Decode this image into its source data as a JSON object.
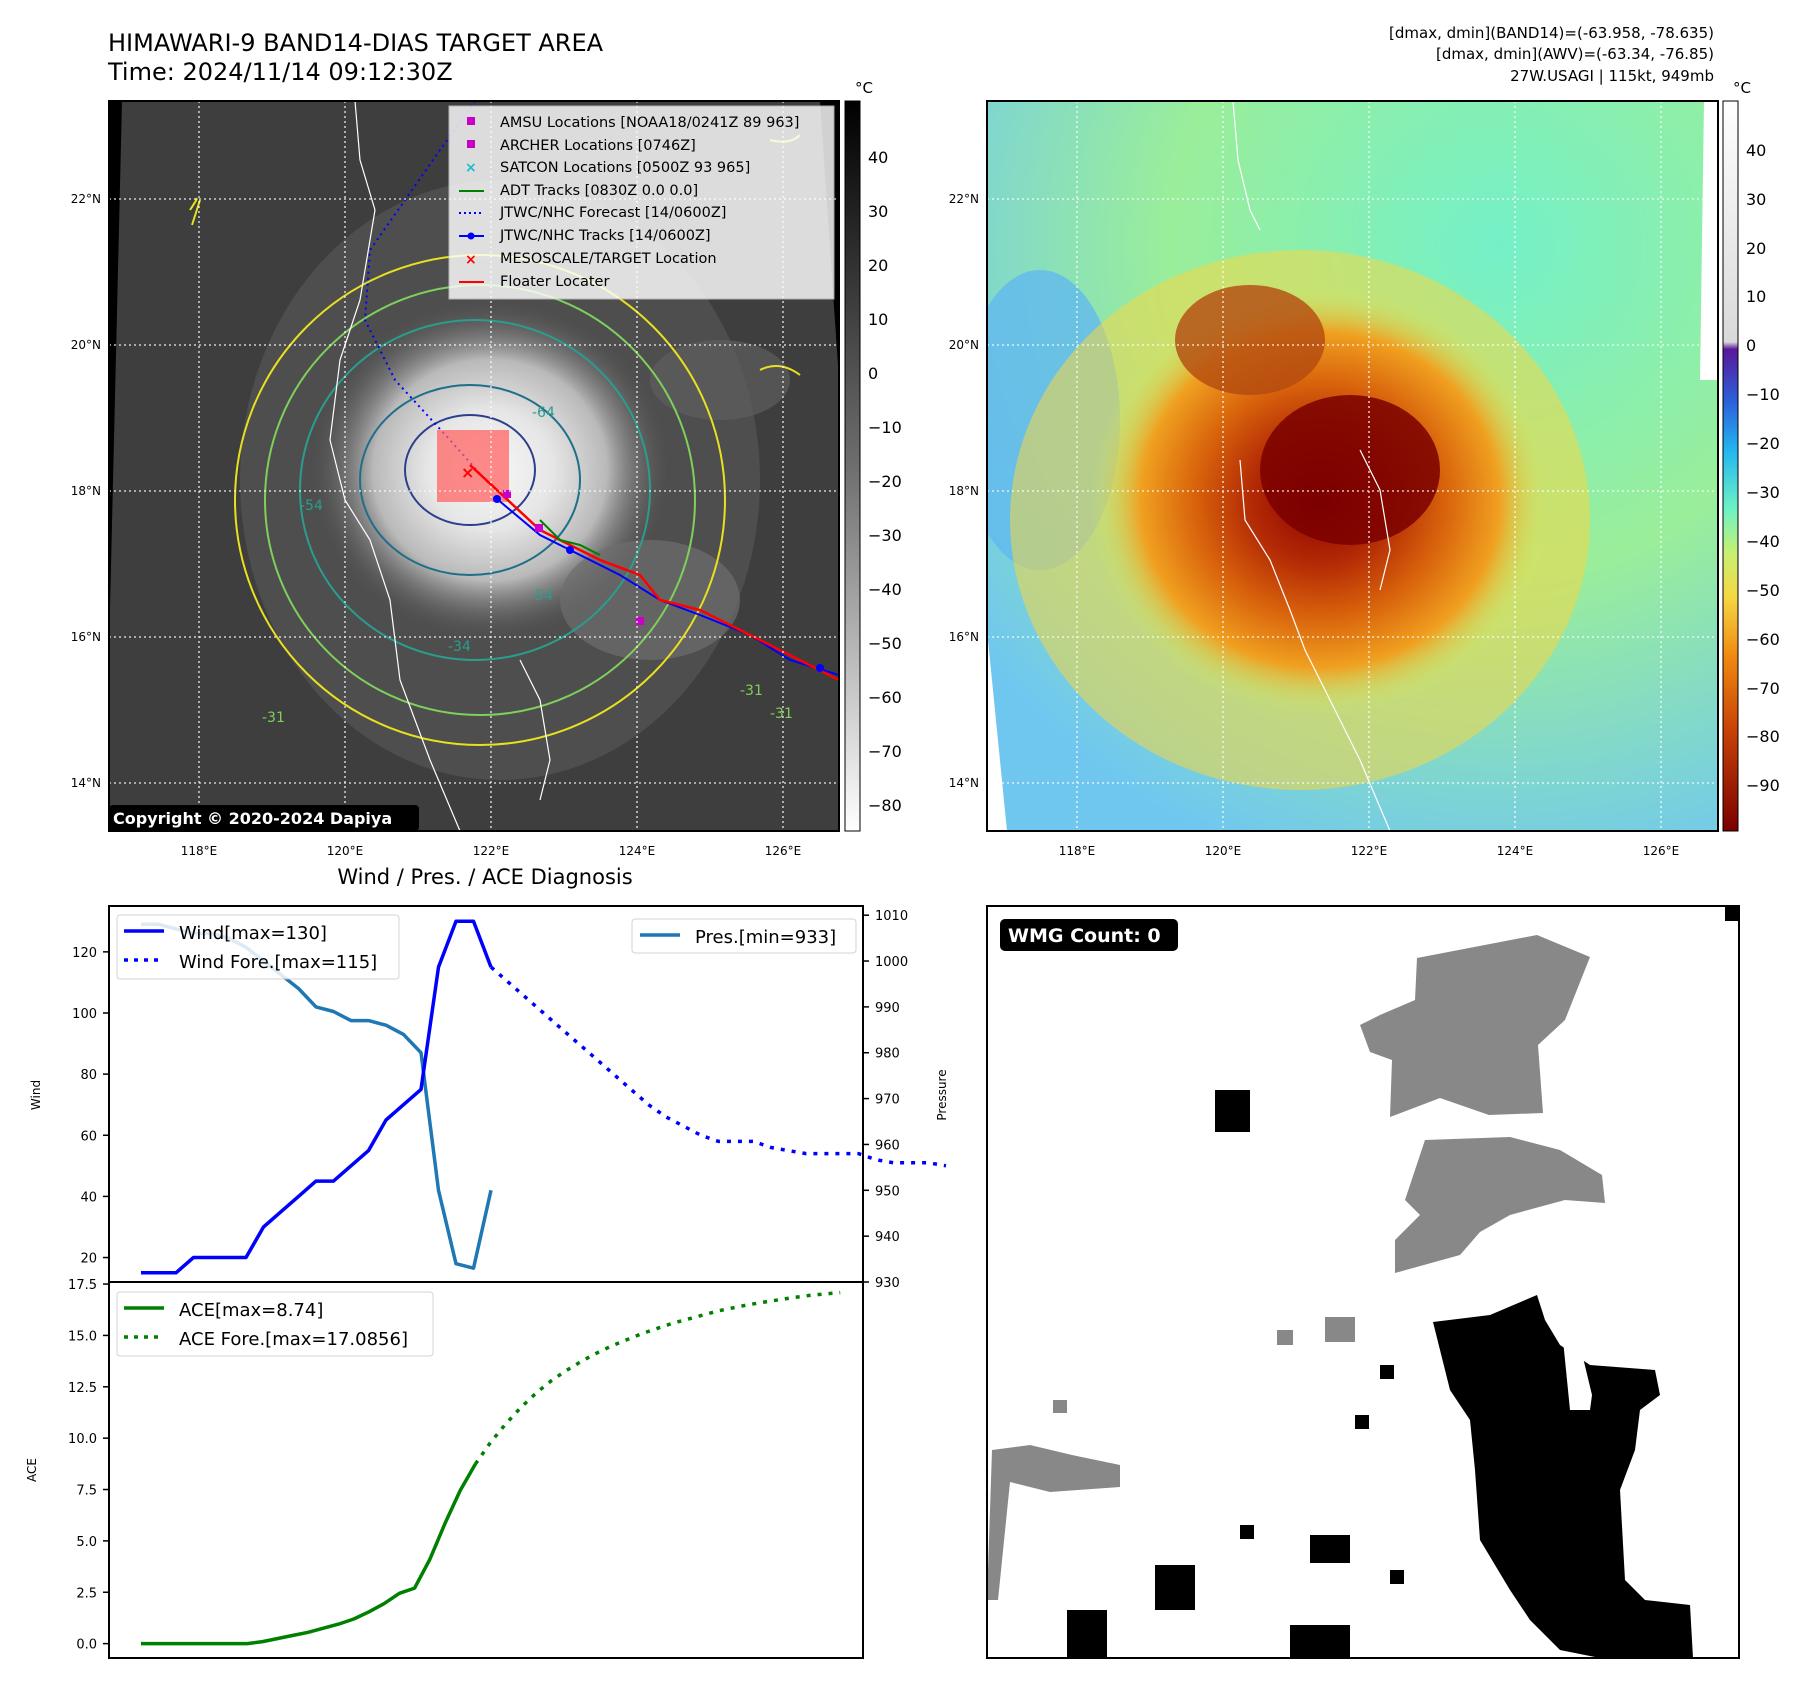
{
  "header": {
    "title_line1": "HIMAWARI-9 BAND14-DIAS TARGET AREA",
    "title_line2": "Time: 2024/11/14 09:12:30Z",
    "right_line1": "[dmax, dmin](BAND14)=(-63.958, -78.635)",
    "right_line2": "[dmax, dmin](AWV)=(-63.34, -76.85)",
    "right_line3": "27W.USAGI | 115kt, 949mb"
  },
  "maps": {
    "lat_labels": [
      "22°N",
      "20°N",
      "18°N",
      "16°N",
      "14°N"
    ],
    "lon_labels": [
      "118°E",
      "120°E",
      "122°E",
      "124°E",
      "126°E"
    ],
    "copyright": "Copyright © 2020-2024 Dapiya",
    "contour_labels": [
      "-64",
      "-54",
      "-34",
      "-54",
      "-31",
      "-31",
      "-31"
    ],
    "legend": [
      {
        "label": "AMSU Locations [NOAA18/0241Z 89 963]",
        "kind": "square",
        "color": "#c800c8"
      },
      {
        "label": "ARCHER Locations [0746Z]",
        "kind": "square",
        "color": "#c800c8"
      },
      {
        "label": "SATCON Locations [0500Z 93 965]",
        "kind": "x",
        "color": "#17becf"
      },
      {
        "label": "ADT Tracks [0830Z 0.0 0.0]",
        "kind": "line",
        "color": "#008000"
      },
      {
        "label": "JTWC/NHC Forecast [14/0600Z]",
        "kind": "dotted",
        "color": "#0000ff"
      },
      {
        "label": "JTWC/NHC Tracks [14/0600Z]",
        "kind": "linedot",
        "color": "#0000ff"
      },
      {
        "label": "MESOSCALE/TARGET Location",
        "kind": "x",
        "color": "#ff0000"
      },
      {
        "label": "Floater Locater",
        "kind": "line",
        "color": "#ff0000"
      }
    ],
    "colorbar_unit": "°C",
    "ir_colorbar_ticks": [
      "40",
      "30",
      "20",
      "10",
      "0",
      "−10",
      "−20",
      "−30",
      "−40",
      "−50",
      "−60",
      "−70",
      "−80"
    ],
    "awv_colorbar_ticks": [
      "40",
      "30",
      "20",
      "10",
      "0",
      "−10",
      "−20",
      "−30",
      "−40",
      "−50",
      "−60",
      "−70",
      "−80",
      "−90"
    ]
  },
  "wmg": {
    "badge": "WMG Count: 0"
  },
  "chart_data": [
    {
      "type": "line",
      "title": "Wind / Pres. / ACE Diagnosis",
      "ylabel": "Wind",
      "ylabel_right": "Pressure",
      "ylim": [
        12,
        135
      ],
      "ylim_right": [
        930,
        1012
      ],
      "yticks": [
        20,
        40,
        60,
        80,
        100,
        120
      ],
      "yticks_right": [
        930,
        940,
        950,
        960,
        970,
        980,
        990,
        1000,
        1010
      ],
      "series": [
        {
          "name": "Wind[max=130]",
          "style": "solid",
          "color": "#0000ff",
          "axis": "left",
          "values": [
            15,
            15,
            15,
            20,
            20,
            20,
            20,
            30,
            35,
            40,
            45,
            45,
            50,
            55,
            65,
            70,
            75,
            115,
            130,
            130,
            115
          ]
        },
        {
          "name": "Wind Fore.[max=115]",
          "style": "dotted",
          "color": "#0000ff",
          "axis": "left",
          "values": [
            115,
            110,
            105,
            100,
            95,
            90,
            85,
            80,
            75,
            70,
            66,
            63,
            60,
            58,
            58,
            58,
            56,
            55,
            54,
            54,
            54,
            54,
            52,
            51,
            51,
            51,
            50
          ]
        },
        {
          "name": "Pres.[min=933]",
          "style": "solid",
          "color": "#1f77b4",
          "axis": "right",
          "values": [
            1008,
            1008,
            1007,
            1006,
            1006,
            1005,
            1003,
            1000,
            997,
            994,
            990,
            989,
            987,
            987,
            986,
            984,
            980,
            950,
            934,
            933,
            950
          ]
        }
      ]
    },
    {
      "type": "line",
      "ylabel": "ACE",
      "ylim": [
        -0.7,
        17.6
      ],
      "yticks": [
        0.0,
        2.5,
        5.0,
        7.5,
        10.0,
        12.5,
        15.0,
        17.5
      ],
      "series": [
        {
          "name": "ACE[max=8.74]",
          "style": "solid",
          "color": "#008000",
          "values": [
            0,
            0,
            0,
            0,
            0,
            0,
            0,
            0,
            0.1,
            0.25,
            0.4,
            0.55,
            0.75,
            0.95,
            1.2,
            1.55,
            1.95,
            2.45,
            2.7,
            4.1,
            5.85,
            7.45,
            8.74
          ]
        },
        {
          "name": "ACE Fore.[max=17.0856]",
          "style": "dotted",
          "color": "#008000",
          "values": [
            8.74,
            9.8,
            10.7,
            11.5,
            12.2,
            12.8,
            13.3,
            13.75,
            14.15,
            14.5,
            14.8,
            15.1,
            15.35,
            15.6,
            15.8,
            16.0,
            16.2,
            16.35,
            16.5,
            16.62,
            16.74,
            16.85,
            16.95,
            17.02,
            17.0856
          ]
        }
      ]
    }
  ]
}
